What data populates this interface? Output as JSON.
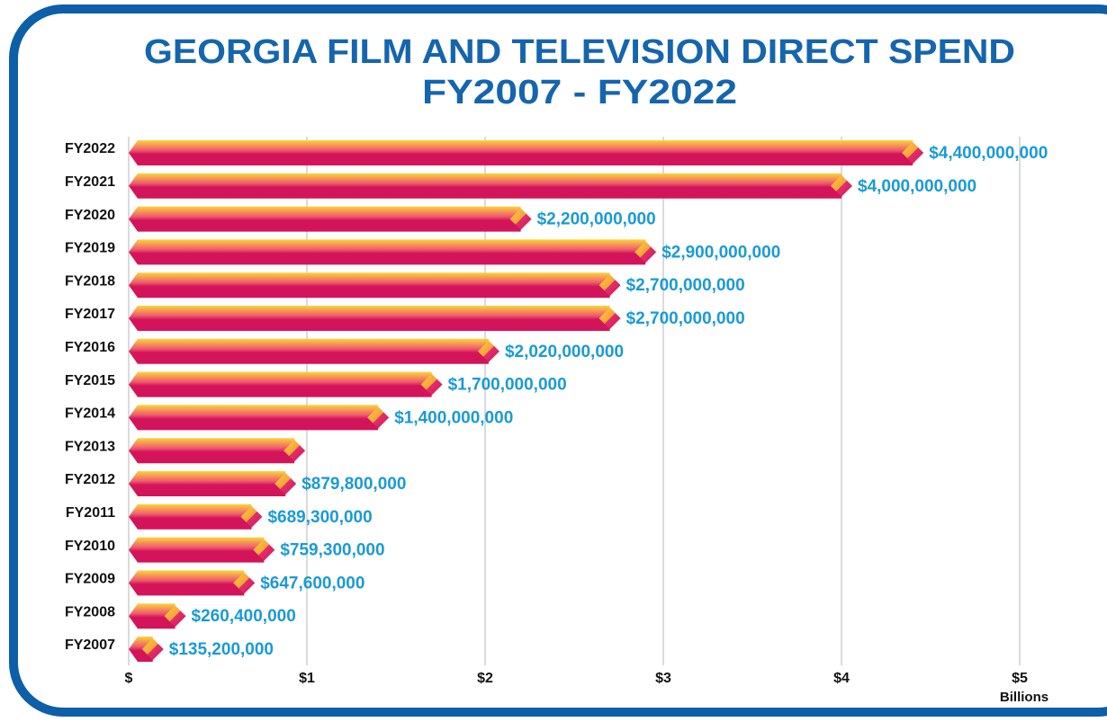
{
  "chart_data": {
    "type": "barh",
    "title": "GEORGIA FILM AND TELEVISION DIRECT SPEND",
    "subtitle": "FY2007 - FY2022",
    "categories": [
      "FY2022",
      "FY2021",
      "FY2020",
      "FY2019",
      "FY2018",
      "FY2017",
      "FY2016",
      "FY2015",
      "FY2014",
      "FY2013",
      "FY2012",
      "FY2011",
      "FY2010",
      "FY2009",
      "FY2008",
      "FY2007"
    ],
    "values": [
      4.4,
      4.0,
      2.2,
      2.9,
      2.7,
      2.7,
      2.02,
      1.7,
      1.4,
      0.93,
      0.8798,
      0.6893,
      0.7593,
      0.6476,
      0.2604,
      0.1352
    ],
    "value_labels": [
      "$4,400,000,000",
      "$4,000,000,000",
      "$2,200,000,000",
      "$2,900,000,000",
      "$2,700,000,000",
      "$2,700,000,000",
      "$2,020,000,000",
      "$1,700,000,000",
      "$1,400,000,000",
      null,
      "$879,800,000",
      "$689,300,000",
      "$759,300,000",
      "$647,600,000",
      "$260,400,000",
      "$135,200,000"
    ],
    "xlim": [
      0,
      5.2
    ],
    "xticks": [
      {
        "value": 0,
        "label": "$"
      },
      {
        "value": 1,
        "label": "$1"
      },
      {
        "value": 2,
        "label": "$2"
      },
      {
        "value": 3,
        "label": "$3"
      },
      {
        "value": 4,
        "label": "$4"
      },
      {
        "value": 5,
        "label": "$5"
      }
    ],
    "xlabel": "Billions",
    "grid": true,
    "color": "#d4145a",
    "label_color": "#1a9ad6"
  }
}
